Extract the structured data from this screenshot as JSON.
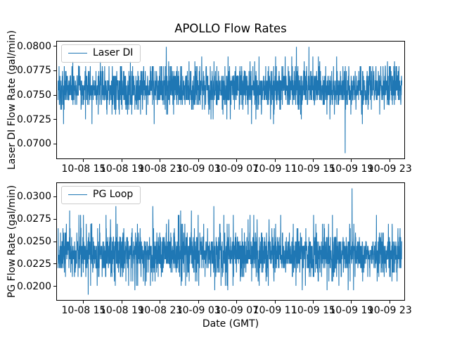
{
  "figure": {
    "background": "#ffffff",
    "accent_color": "#1f77b4"
  },
  "chart_data": [
    {
      "type": "line",
      "title": "APOLLO Flow Rates",
      "ylabel": "Laser DI Flow Rate (gal/min)",
      "xlabel": "",
      "legend_label": "Laser DI",
      "legend_position": "upper-left",
      "grid": false,
      "ylim": [
        0.06845,
        0.08055
      ],
      "y_ticks": {
        "values": [
          0.07,
          0.0725,
          0.075,
          0.0775,
          0.08
        ],
        "labels": [
          "0.0700",
          "0.0725",
          "0.0750",
          "0.0775",
          "0.0800"
        ]
      },
      "x_ticks": {
        "fracs": [
          0.0786,
          0.1883,
          0.298,
          0.4077,
          0.5174,
          0.6271,
          0.7368,
          0.8465,
          0.9562
        ],
        "labels": [
          "10-08 15",
          "10-08 19",
          "10-08 23",
          "10-09 03",
          "10-09 07",
          "10-09 11",
          "10-09 15",
          "10-09 19",
          "10-09 23"
        ]
      },
      "series": [
        {
          "name": "Laser DI",
          "color": "#1f77b4",
          "n": 2300,
          "seed": 101,
          "levels": [
            0.072,
            0.0725,
            0.073,
            0.0735,
            0.074,
            0.0745,
            0.075,
            0.0755,
            0.076,
            0.0765,
            0.077,
            0.0775,
            0.078,
            0.0785,
            0.079,
            0.0795,
            0.08
          ],
          "weights": [
            0.004,
            0.006,
            0.014,
            0.02,
            0.045,
            0.1,
            0.16,
            0.18,
            0.17,
            0.13,
            0.08,
            0.045,
            0.034,
            0.006,
            0.004,
            0.001,
            0.001
          ],
          "events": [
            {
              "frac": 0.835,
              "value": 0.069
            },
            {
              "frac": 0.6935,
              "value": 0.08
            },
            {
              "frac": 0.7298,
              "value": 0.08
            }
          ]
        }
      ]
    },
    {
      "type": "line",
      "title": "",
      "ylabel": "PG Flow Rate (gal/min)",
      "xlabel": "Date (GMT)",
      "legend_label": "PG Loop",
      "legend_position": "upper-left",
      "grid": false,
      "ylim": [
        0.0184,
        0.0316
      ],
      "y_ticks": {
        "values": [
          0.02,
          0.0225,
          0.025,
          0.0275,
          0.03
        ],
        "labels": [
          "0.0200",
          "0.0225",
          "0.0250",
          "0.0275",
          "0.0300"
        ]
      },
      "x_ticks": {
        "fracs": [
          0.0786,
          0.1883,
          0.298,
          0.4077,
          0.5174,
          0.6271,
          0.7368,
          0.8465,
          0.9562
        ],
        "labels": [
          "10-08 15",
          "10-08 19",
          "10-08 23",
          "10-09 03",
          "10-09 07",
          "10-09 11",
          "10-09 15",
          "10-09 19",
          "10-09 23"
        ]
      },
      "series": [
        {
          "name": "PG Loop",
          "color": "#1f77b4",
          "n": 2300,
          "seed": 202,
          "levels": [
            0.0195,
            0.02,
            0.0205,
            0.021,
            0.0215,
            0.022,
            0.0225,
            0.023,
            0.0235,
            0.024,
            0.0245,
            0.025,
            0.0255,
            0.026,
            0.0265,
            0.027,
            0.0275,
            0.028,
            0.0285,
            0.029,
            0.0295,
            0.03
          ],
          "weights": [
            0.003,
            0.008,
            0.013,
            0.022,
            0.035,
            0.06,
            0.095,
            0.135,
            0.15,
            0.15,
            0.125,
            0.09,
            0.05,
            0.025,
            0.015,
            0.01,
            0.006,
            0.004,
            0.002,
            0.001,
            0.0005,
            0.0005
          ],
          "events": [
            {
              "frac": 0.088,
              "value": 0.019
            },
            {
              "frac": 0.855,
              "value": 0.031
            }
          ]
        }
      ]
    }
  ]
}
